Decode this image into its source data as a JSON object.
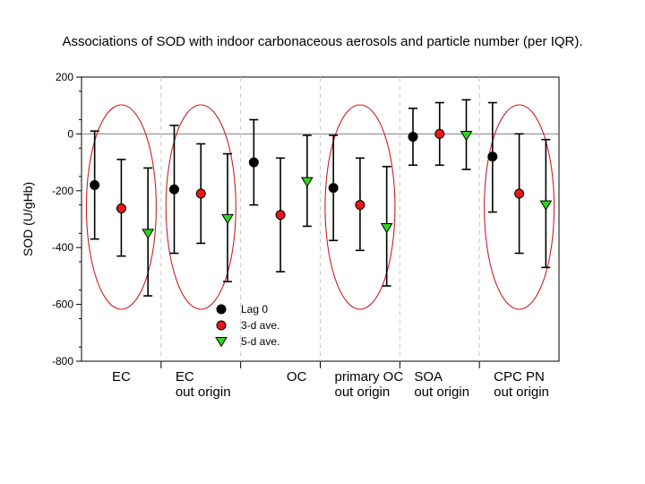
{
  "chart_data": {
    "type": "scatter",
    "title": "Associations of SOD with indoor carbonaceous aerosols and particle number (per IQR).",
    "ylabel": "SOD (U/gHb)",
    "xlabel": "",
    "ylim": [
      -800,
      200
    ],
    "yticks": [
      200,
      0,
      -200,
      -400,
      -600,
      -800
    ],
    "grid": false,
    "legend_position": "bottom-center",
    "categories": [
      [
        "EC"
      ],
      [
        "EC",
        "out origin"
      ],
      [
        "OC"
      ],
      [
        "primary OC",
        "out origin"
      ],
      [
        "SOA",
        "out origin"
      ],
      [
        "CPC PN",
        "out origin"
      ]
    ],
    "circled_categories": [
      0,
      1,
      3,
      5
    ],
    "series": [
      {
        "name": "Lag 0",
        "marker": "circle",
        "color": "#000000",
        "points": [
          {
            "y": -180,
            "lo": -370,
            "hi": 10
          },
          {
            "y": -195,
            "lo": -420,
            "hi": 30
          },
          {
            "y": -100,
            "lo": -250,
            "hi": 50
          },
          {
            "y": -190,
            "lo": -375,
            "hi": -5
          },
          {
            "y": -10,
            "lo": -110,
            "hi": 90
          },
          {
            "y": -80,
            "lo": -275,
            "hi": 110
          }
        ]
      },
      {
        "name": "3-d ave.",
        "marker": "circle",
        "color": "#e8171b",
        "points": [
          {
            "y": -262,
            "lo": -430,
            "hi": -90
          },
          {
            "y": -210,
            "lo": -385,
            "hi": -35
          },
          {
            "y": -285,
            "lo": -485,
            "hi": -85
          },
          {
            "y": -250,
            "lo": -410,
            "hi": -85
          },
          {
            "y": 0,
            "lo": -110,
            "hi": 110
          },
          {
            "y": -210,
            "lo": -420,
            "hi": 0
          }
        ]
      },
      {
        "name": "5-d ave.",
        "marker": "triangle-down",
        "color": "#32d21e",
        "points": [
          {
            "y": -350,
            "lo": -570,
            "hi": -120
          },
          {
            "y": -298,
            "lo": -520,
            "hi": -70
          },
          {
            "y": -168,
            "lo": -325,
            "hi": -5
          },
          {
            "y": -330,
            "lo": -535,
            "hi": -115
          },
          {
            "y": -5,
            "lo": -125,
            "hi": 120
          },
          {
            "y": -250,
            "lo": -470,
            "hi": -20
          }
        ]
      }
    ]
  }
}
